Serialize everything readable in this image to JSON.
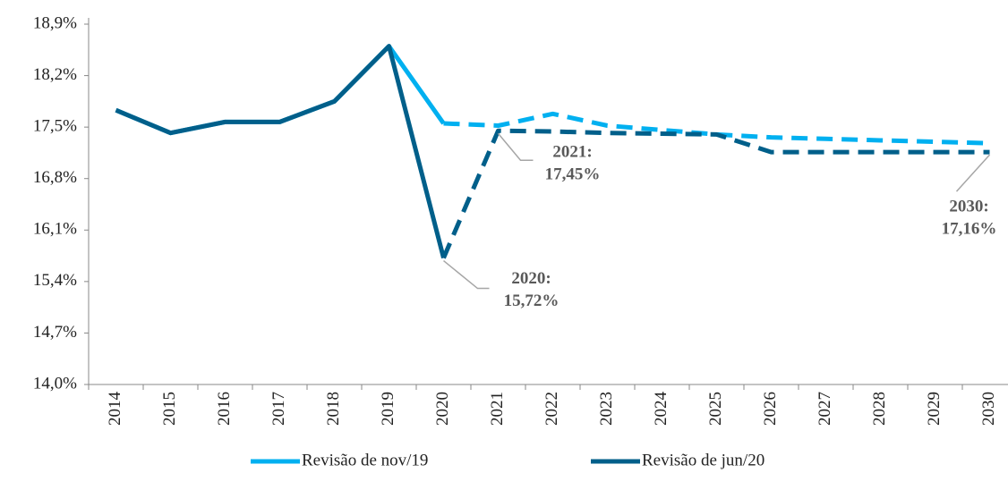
{
  "chart_data": {
    "type": "line",
    "categories": [
      "2014",
      "2015",
      "2016",
      "2017",
      "2018",
      "2019",
      "2020",
      "2021",
      "2022",
      "2023",
      "2024",
      "2025",
      "2026",
      "2027",
      "2028",
      "2029",
      "2030"
    ],
    "series": [
      {
        "name": "Revisão de nov/19",
        "color": "#00b0f0",
        "dash_from": "2020",
        "values": [
          17.73,
          17.42,
          17.57,
          17.57,
          17.85,
          18.6,
          17.55,
          17.52,
          17.68,
          17.52,
          17.46,
          17.4,
          17.36,
          17.34,
          17.32,
          17.3,
          17.28
        ]
      },
      {
        "name": "Revisão de jun/20",
        "color": "#005f8a",
        "dash_from": "2020",
        "values": [
          17.73,
          17.42,
          17.57,
          17.57,
          17.85,
          18.6,
          15.72,
          17.45,
          17.44,
          17.42,
          17.41,
          17.4,
          17.16,
          17.16,
          17.16,
          17.16,
          17.16
        ]
      }
    ],
    "ylim": [
      14.0,
      18.9
    ],
    "yticks": [
      {
        "value": 14.0,
        "label": "14,0%"
      },
      {
        "value": 14.7,
        "label": "14,7%"
      },
      {
        "value": 15.4,
        "label": "15,4%"
      },
      {
        "value": 16.1,
        "label": "16,1%"
      },
      {
        "value": 16.8,
        "label": "16,8%"
      },
      {
        "value": 17.5,
        "label": "17,5%"
      },
      {
        "value": 18.2,
        "label": "18,2%"
      },
      {
        "value": 18.9,
        "label": "18,9%"
      }
    ],
    "annotations": [
      {
        "category": "2020",
        "series": 1,
        "lines": [
          "2020:",
          "15,72%"
        ]
      },
      {
        "category": "2021",
        "series": 1,
        "lines": [
          "2021:",
          "17,45%"
        ]
      },
      {
        "category": "2030",
        "series": 1,
        "lines": [
          "2030:",
          "17,16%"
        ]
      }
    ]
  }
}
